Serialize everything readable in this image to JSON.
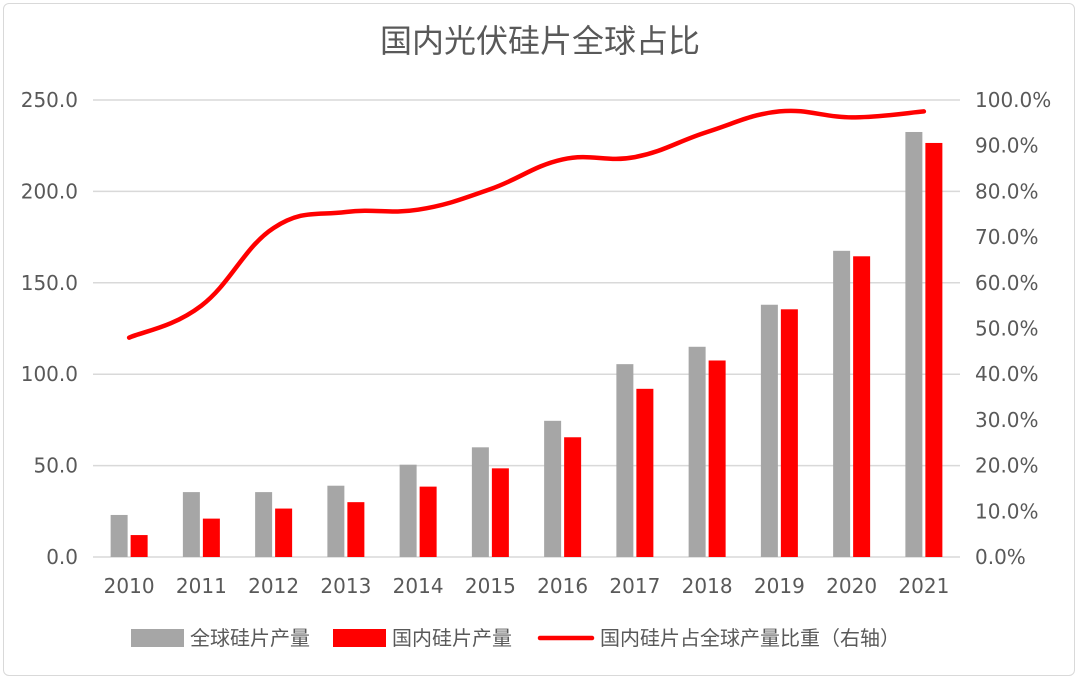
{
  "chart_data": {
    "type": "bar",
    "title": "国内光伏硅片全球占比",
    "categories": [
      "2010",
      "2011",
      "2012",
      "2013",
      "2014",
      "2015",
      "2016",
      "2017",
      "2018",
      "2019",
      "2020",
      "2021"
    ],
    "series": [
      {
        "name": "全球硅片产量",
        "type": "bar",
        "axis": "left",
        "color": "#a6a6a6",
        "values": [
          23,
          35.5,
          35.5,
          39,
          50.5,
          60,
          74.5,
          105.5,
          115,
          138,
          167.5,
          232.5
        ]
      },
      {
        "name": "国内硅片产量",
        "type": "bar",
        "axis": "left",
        "color": "#ff0000",
        "values": [
          12,
          21,
          26.5,
          30,
          38.5,
          48.5,
          65.5,
          92,
          107.5,
          135.5,
          164.5,
          226.5
        ]
      },
      {
        "name": "国内硅片占全球产量比重（右轴）",
        "type": "line",
        "axis": "right",
        "color": "#ff0000",
        "values": [
          0.48,
          0.55,
          0.72,
          0.755,
          0.76,
          0.805,
          0.87,
          0.875,
          0.93,
          0.975,
          0.962,
          0.975
        ]
      }
    ],
    "yleft": {
      "ylim": [
        0,
        250
      ],
      "ticks": [
        "0.0",
        "50.0",
        "100.0",
        "150.0",
        "200.0",
        "250.0"
      ]
    },
    "yright": {
      "ylim": [
        0,
        1
      ],
      "ticks": [
        "0.0%",
        "10.0%",
        "20.0%",
        "30.0%",
        "40.0%",
        "50.0%",
        "60.0%",
        "70.0%",
        "80.0%",
        "90.0%",
        "100.0%"
      ]
    },
    "grid": true,
    "legend": "bottom"
  }
}
